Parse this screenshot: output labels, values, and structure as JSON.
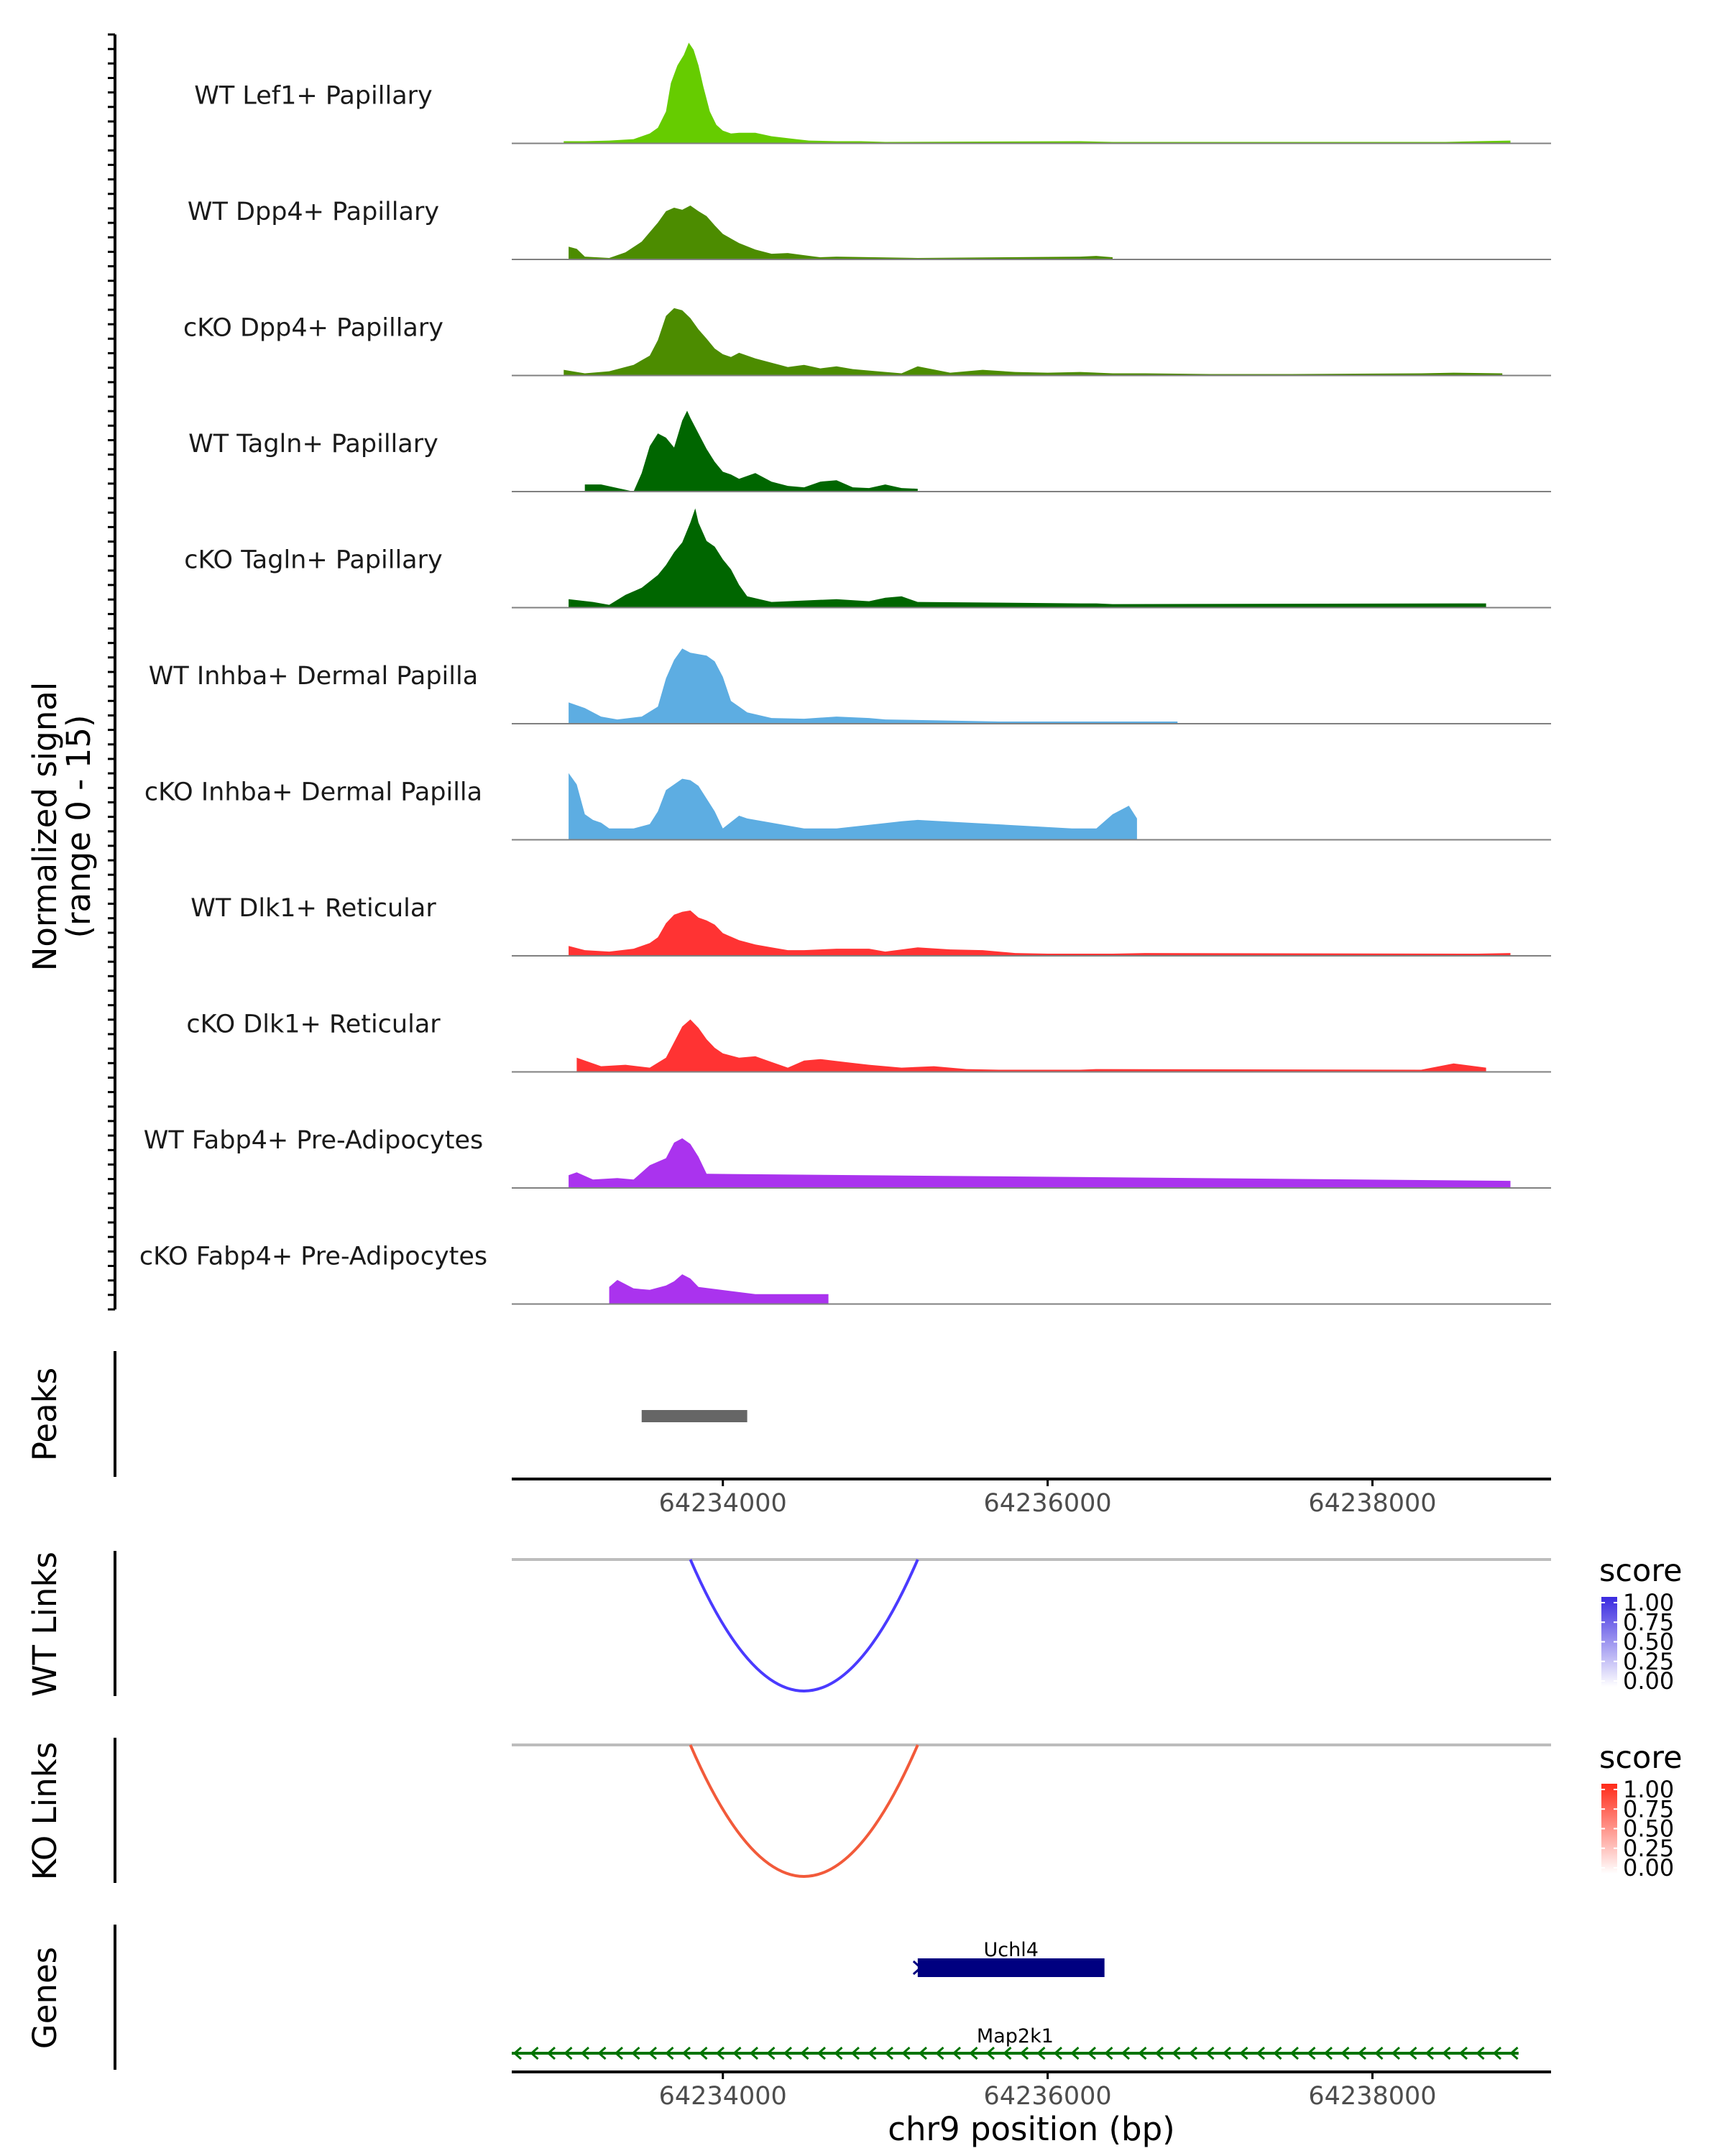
{
  "chart_data": {
    "type": "area",
    "title": "",
    "chromosome": "chr9",
    "xlabel": "chr9 position (bp)",
    "xlim": [
      64232700,
      64239100
    ],
    "xticks": [
      64234000,
      64236000,
      64238000
    ],
    "xtick_labels": [
      "64234000",
      "64236000",
      "64238000"
    ],
    "coverage": {
      "ylabel_line1": "Normalized signal",
      "ylabel_line2": "(range 0 - 15)",
      "ylim": [
        0,
        15
      ],
      "tracks": [
        {
          "label": "WT Lef1+ Papillary",
          "color": "#66cc00",
          "x": [
            64233020,
            64233150,
            64233300,
            64233450,
            64233550,
            64233600,
            64233650,
            64233680,
            64233720,
            64233760,
            64233790,
            64233820,
            64233850,
            64233880,
            64233920,
            64233960,
            64234000,
            64234050,
            64234100,
            64234200,
            64234300,
            64234450,
            64234530,
            64234700,
            64234850,
            64235000,
            64236200,
            64236400,
            64236600,
            64238450,
            64238650,
            64238850
          ],
          "y": [
            0.3,
            0.3,
            0.4,
            0.6,
            1.4,
            2.2,
            4.5,
            8.5,
            11.0,
            12.5,
            14.2,
            13.2,
            11.0,
            8.0,
            4.5,
            2.6,
            1.8,
            1.4,
            1.5,
            1.5,
            1.0,
            0.6,
            0.4,
            0.3,
            0.3,
            0.2,
            0.3,
            0.2,
            0.2,
            0.2,
            0.3,
            0.4
          ]
        },
        {
          "label": "WT Dpp4+ Papillary",
          "color": "#4c8c00",
          "x": [
            64233050,
            64233100,
            64233150,
            64233300,
            64233400,
            64233500,
            64233600,
            64233650,
            64233700,
            64233750,
            64233800,
            64233850,
            64233900,
            64233950,
            64234000,
            64234100,
            64234200,
            64234300,
            64234400,
            64234500,
            64234600,
            64234700,
            64235200,
            64236200,
            64236300,
            64236400
          ],
          "y": [
            1.8,
            1.5,
            0.4,
            0.2,
            1.0,
            2.5,
            5.2,
            6.8,
            7.3,
            7.0,
            7.6,
            6.8,
            6.1,
            4.8,
            3.6,
            2.3,
            1.4,
            0.8,
            0.9,
            0.6,
            0.3,
            0.4,
            0.2,
            0.4,
            0.5,
            0.3
          ]
        },
        {
          "label": "cKO Dpp4+ Papillary",
          "color": "#4c8c00",
          "x": [
            64233020,
            64233150,
            64233300,
            64233450,
            64233550,
            64233600,
            64233650,
            64233700,
            64233750,
            64233800,
            64233850,
            64233900,
            64233950,
            64234000,
            64234050,
            64234100,
            64234200,
            64234300,
            64234400,
            64234500,
            64234600,
            64234700,
            64234800,
            64234950,
            64235100,
            64235200,
            64235400,
            64235600,
            64235800,
            64236000,
            64236200,
            64236400,
            64236600,
            64237000,
            64237500,
            64238300,
            64238500,
            64238800
          ],
          "y": [
            0.8,
            0.3,
            0.6,
            1.5,
            2.8,
            5.0,
            8.4,
            9.5,
            9.2,
            8.1,
            6.5,
            5.2,
            3.8,
            3.0,
            2.6,
            3.2,
            2.4,
            1.8,
            1.2,
            1.5,
            1.0,
            1.3,
            0.9,
            0.6,
            0.3,
            1.3,
            0.4,
            0.8,
            0.5,
            0.4,
            0.5,
            0.3,
            0.3,
            0.2,
            0.2,
            0.3,
            0.4,
            0.3
          ]
        },
        {
          "label": "WT Tagln+ Papillary",
          "color": "#006600",
          "x": [
            64233150,
            64233250,
            64233450,
            64233500,
            64233550,
            64233600,
            64233650,
            64233700,
            64233750,
            64233780,
            64233800,
            64233850,
            64233900,
            64233950,
            64234000,
            64234050,
            64234100,
            64234200,
            64234300,
            64234400,
            64234500,
            64234600,
            64234700,
            64234800,
            64234900,
            64235000,
            64235100,
            64235200
          ],
          "y": [
            1.0,
            1.0,
            0.0,
            2.6,
            6.4,
            8.2,
            7.6,
            6.2,
            10.0,
            11.4,
            10.4,
            8.2,
            6.0,
            4.2,
            2.8,
            2.4,
            1.8,
            2.6,
            1.4,
            0.8,
            0.6,
            1.4,
            1.6,
            0.6,
            0.5,
            1.0,
            0.5,
            0.4
          ]
        },
        {
          "label": "cKO Tagln+ Papillary",
          "color": "#006600",
          "x": [
            64233050,
            64233200,
            64233300,
            64233400,
            64233500,
            64233600,
            64233650,
            64233700,
            64233750,
            64233800,
            64233830,
            64233850,
            64233900,
            64233950,
            64234000,
            64234050,
            64234100,
            64234150,
            64234300,
            64234500,
            64234700,
            64234900,
            64235000,
            64235100,
            64235200,
            64236200,
            64236300,
            64236400,
            64238600,
            64238700
          ],
          "y": [
            1.2,
            0.8,
            0.4,
            1.8,
            2.8,
            4.6,
            6.0,
            7.8,
            9.2,
            12.0,
            14.0,
            12.0,
            9.4,
            8.6,
            6.8,
            5.4,
            3.2,
            1.6,
            0.8,
            1.0,
            1.2,
            0.9,
            1.4,
            1.6,
            0.8,
            0.6,
            0.6,
            0.5,
            0.6,
            0.6
          ]
        },
        {
          "label": "WT Inhba+ Dermal Papilla",
          "color": "#5dade2",
          "x": [
            64233050,
            64233150,
            64233250,
            64233350,
            64233500,
            64233600,
            64233650,
            64233700,
            64233750,
            64233800,
            64233850,
            64233900,
            64233950,
            64234000,
            64234050,
            64234100,
            64234150,
            64234300,
            64234500,
            64234700,
            64234900,
            64235000,
            64235500,
            64235700,
            64236200,
            64236300,
            64236600,
            64236800
          ],
          "y": [
            3.0,
            2.2,
            1.0,
            0.6,
            1.0,
            2.4,
            6.4,
            9.0,
            10.6,
            10.0,
            9.8,
            9.6,
            8.8,
            6.6,
            3.2,
            2.4,
            1.6,
            0.8,
            0.7,
            1.0,
            0.8,
            0.6,
            0.4,
            0.3,
            0.3,
            0.3,
            0.3,
            0.3
          ]
        },
        {
          "label": "cKO Inhba+ Dermal Papilla",
          "color": "#5dade2",
          "x": [
            64233050,
            64233100,
            64233150,
            64233200,
            64233250,
            64233300,
            64233450,
            64233550,
            64233600,
            64233650,
            64233700,
            64233750,
            64233800,
            64233850,
            64233900,
            64233950,
            64234000,
            64234100,
            64234150,
            64234500,
            64234700,
            64235100,
            64235200,
            64236150,
            64236300,
            64236400,
            64236500,
            64236550
          ],
          "y": [
            9.4,
            7.8,
            3.6,
            2.8,
            2.4,
            1.6,
            1.6,
            2.2,
            4.0,
            7.0,
            7.8,
            8.6,
            8.4,
            7.6,
            5.8,
            4.0,
            1.6,
            3.4,
            3.0,
            1.6,
            1.6,
            2.6,
            2.8,
            1.6,
            1.6,
            3.6,
            4.8,
            3.0
          ]
        },
        {
          "label": "WT Dlk1+ Reticular",
          "color": "#ff3333",
          "x": [
            64233050,
            64233150,
            64233300,
            64233450,
            64233550,
            64233600,
            64233650,
            64233700,
            64233750,
            64233800,
            64233850,
            64233900,
            64233950,
            64234000,
            64234100,
            64234200,
            64234300,
            64234400,
            64234500,
            64234700,
            64234900,
            64235000,
            64235200,
            64235400,
            64235600,
            64235800,
            64236000,
            64236200,
            64236400,
            64236600,
            64238650,
            64238850
          ],
          "y": [
            1.4,
            0.8,
            0.6,
            1.0,
            1.8,
            2.6,
            4.6,
            5.8,
            6.2,
            6.4,
            5.4,
            5.0,
            4.4,
            3.2,
            2.2,
            1.6,
            1.2,
            0.8,
            0.8,
            1.0,
            1.0,
            0.6,
            1.2,
            0.9,
            0.8,
            0.4,
            0.3,
            0.3,
            0.3,
            0.4,
            0.3,
            0.4
          ]
        },
        {
          "label": "cKO Dlk1+ Reticular",
          "color": "#ff3333",
          "x": [
            64233100,
            64233250,
            64233400,
            64233550,
            64233650,
            64233700,
            64233750,
            64233800,
            64233850,
            64233900,
            64233950,
            64234000,
            64234100,
            64234200,
            64234300,
            64234400,
            64234500,
            64234600,
            64234750,
            64234900,
            64235100,
            64235300,
            64235500,
            64235700,
            64236000,
            64236200,
            64236300,
            64238300,
            64238500,
            64238700
          ],
          "y": [
            2.0,
            0.8,
            1.0,
            0.6,
            2.0,
            4.2,
            6.4,
            7.4,
            6.2,
            4.6,
            3.4,
            2.6,
            2.0,
            2.2,
            1.4,
            0.6,
            1.6,
            1.8,
            1.4,
            1.0,
            0.6,
            0.8,
            0.4,
            0.3,
            0.3,
            0.3,
            0.4,
            0.3,
            1.2,
            0.6
          ]
        },
        {
          "label": "WT Fabp4+ Pre-Adipocytes",
          "color": "#aa33ee",
          "x": [
            64233050,
            64233100,
            64233200,
            64233350,
            64233450,
            64233550,
            64233650,
            64233700,
            64233750,
            64233800,
            64233850,
            64233900,
            64238850
          ],
          "y": [
            1.8,
            2.2,
            1.2,
            1.4,
            1.2,
            3.2,
            4.2,
            6.4,
            7.0,
            6.2,
            4.4,
            2.0,
            1.0
          ]
        },
        {
          "label": "cKO Fabp4+ Pre-Adipocytes",
          "color": "#aa33ee",
          "x": [
            64233300,
            64233350,
            64233450,
            64233550,
            64233650,
            64233700,
            64233750,
            64233800,
            64233850,
            64234200,
            64234400,
            64234650
          ],
          "y": [
            2.4,
            3.4,
            2.2,
            2.0,
            2.6,
            3.2,
            4.2,
            3.6,
            2.4,
            1.4,
            1.4,
            1.4
          ]
        }
      ]
    },
    "peaks": {
      "label": "Peaks",
      "regions": [
        {
          "start": 64233500,
          "end": 64234150
        }
      ]
    },
    "wt_links": {
      "label": "WT Links",
      "color": "#4a3aff",
      "legend_title": "score",
      "legend_ticks": [
        "1.00",
        "0.75",
        "0.50",
        "0.25",
        "0.00"
      ],
      "legend_colors": [
        "#3a2ae0",
        "#ffffff"
      ],
      "links": [
        {
          "start": 64233800,
          "end": 64235200,
          "score": 1.0
        }
      ]
    },
    "ko_links": {
      "label": "KO Links",
      "color": "#f25a3a",
      "legend_title": "score",
      "legend_ticks": [
        "1.00",
        "0.75",
        "0.50",
        "0.25",
        "0.00"
      ],
      "legend_colors": [
        "#ff2a18",
        "#ffffff"
      ],
      "links": [
        {
          "start": 64233800,
          "end": 64235200,
          "score": 1.0
        }
      ]
    },
    "genes": {
      "label": "Genes",
      "items": [
        {
          "name": "Uchl4",
          "start": 64235200,
          "end": 64236350,
          "strand": "+",
          "color": "#000080"
        },
        {
          "name": "Map2k1",
          "start": 64232700,
          "end": 64238900,
          "strand": "-",
          "color": "#007300"
        }
      ]
    }
  }
}
